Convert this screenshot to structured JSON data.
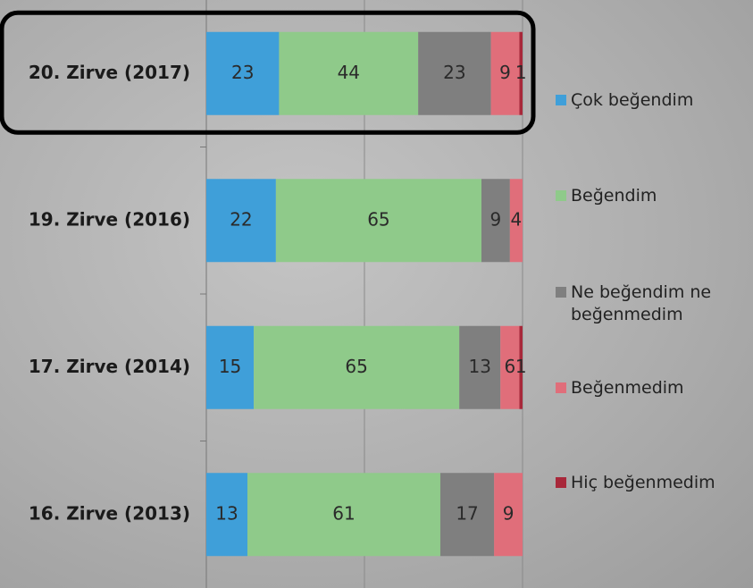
{
  "chart_data": {
    "type": "stacked-bar-horizontal",
    "categories": [
      "20. Zirve (2017)",
      "19. Zirve (2016)",
      "17. Zirve (2014)",
      "16. Zirve (2013)"
    ],
    "series": [
      {
        "name": "Çok beğendim",
        "color": "#3f9fd9",
        "values": [
          23,
          22,
          15,
          13
        ]
      },
      {
        "name": "Beğendim",
        "color": "#8fca8a",
        "values": [
          44,
          65,
          65,
          61
        ]
      },
      {
        "name": "Ne beğendim ne beğenmedim",
        "color": "#7f7f7f",
        "values": [
          23,
          9,
          13,
          17
        ]
      },
      {
        "name": "Beğenmedim",
        "color": "#e06e7a",
        "values": [
          9,
          4,
          6,
          9
        ]
      },
      {
        "name": "Hiç beğenmedim",
        "color": "#a8283a",
        "values": [
          1,
          null,
          1,
          null
        ]
      }
    ],
    "xlim": [
      0,
      100
    ],
    "xticks": [
      0,
      50,
      100
    ],
    "grid": true,
    "legend": "right",
    "highlight": 0
  }
}
